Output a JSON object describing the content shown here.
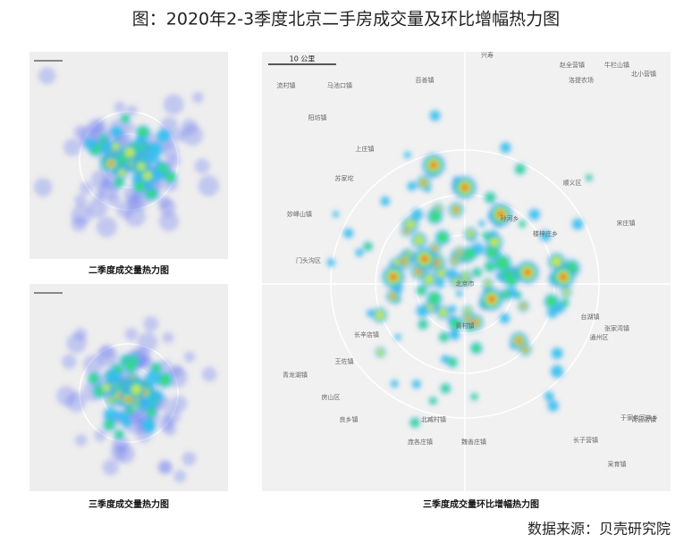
{
  "header": {
    "title": "图：2020年2-3季度北京二手房成交量及环比增幅热力图"
  },
  "panels": [
    {
      "caption": "二季度成交量热力图"
    },
    {
      "caption": "三季度成交量热力图"
    },
    {
      "caption": "三季度成交量环比增幅热力图",
      "scale_label": "10 公里"
    }
  ],
  "map_labels": [
    "兴寿",
    "赵全营镇",
    "牛栏山镇",
    "北小营镇",
    "流村镇",
    "马池口镇",
    "百善镇",
    "洛提农场",
    "阳坊镇",
    "上庄镇",
    "苏家坨",
    "妙峰山镇",
    "门头沟区",
    "北京市",
    "长辛店镇",
    "王佐镇",
    "青龙湖镇",
    "房山区",
    "良乡镇",
    "宋庄镇",
    "台湖镇",
    "张家湾镇",
    "于家务回族乡",
    "青云店镇",
    "长子营镇",
    "采育镇",
    "黄村镇",
    "北臧村镇",
    "庞各庄镇",
    "魏善庄镇",
    "通州区",
    "顺义区",
    "孙河乡",
    "楼梓庄乡"
  ],
  "source": "数据来源：贝壳研究院"
}
